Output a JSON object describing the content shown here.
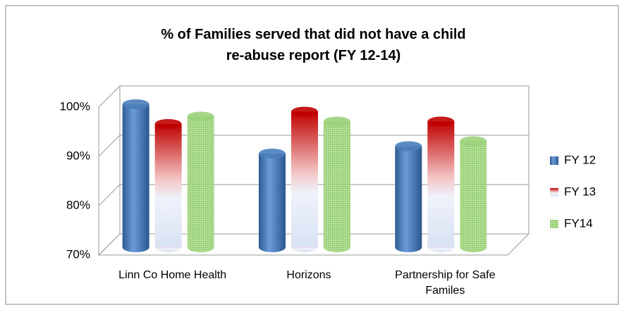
{
  "chart_data": {
    "type": "bar3d",
    "title": "% of Families served that did not have a child re-abuse report (FY 12-14)",
    "categories": [
      "Linn Co Home Health",
      "Horizons",
      "Partnership for Safe Familes"
    ],
    "series": [
      {
        "name": "FY 12",
        "color": "#4a7ebb",
        "values": [
          99,
          89,
          90.5
        ]
      },
      {
        "name": "FY 13",
        "color": "#c00000",
        "values": [
          95,
          97.5,
          95.5
        ]
      },
      {
        "name": "FY14",
        "color": "#9bd27a",
        "values": [
          96.5,
          95.5,
          91.5
        ]
      }
    ],
    "ylim": [
      70,
      100
    ],
    "yticks": [
      {
        "value": 70,
        "label": "70%"
      },
      {
        "value": 80,
        "label": "80%"
      },
      {
        "value": 90,
        "label": "90%"
      },
      {
        "value": 100,
        "label": "100%"
      }
    ],
    "grid": true,
    "legend": "right"
  }
}
